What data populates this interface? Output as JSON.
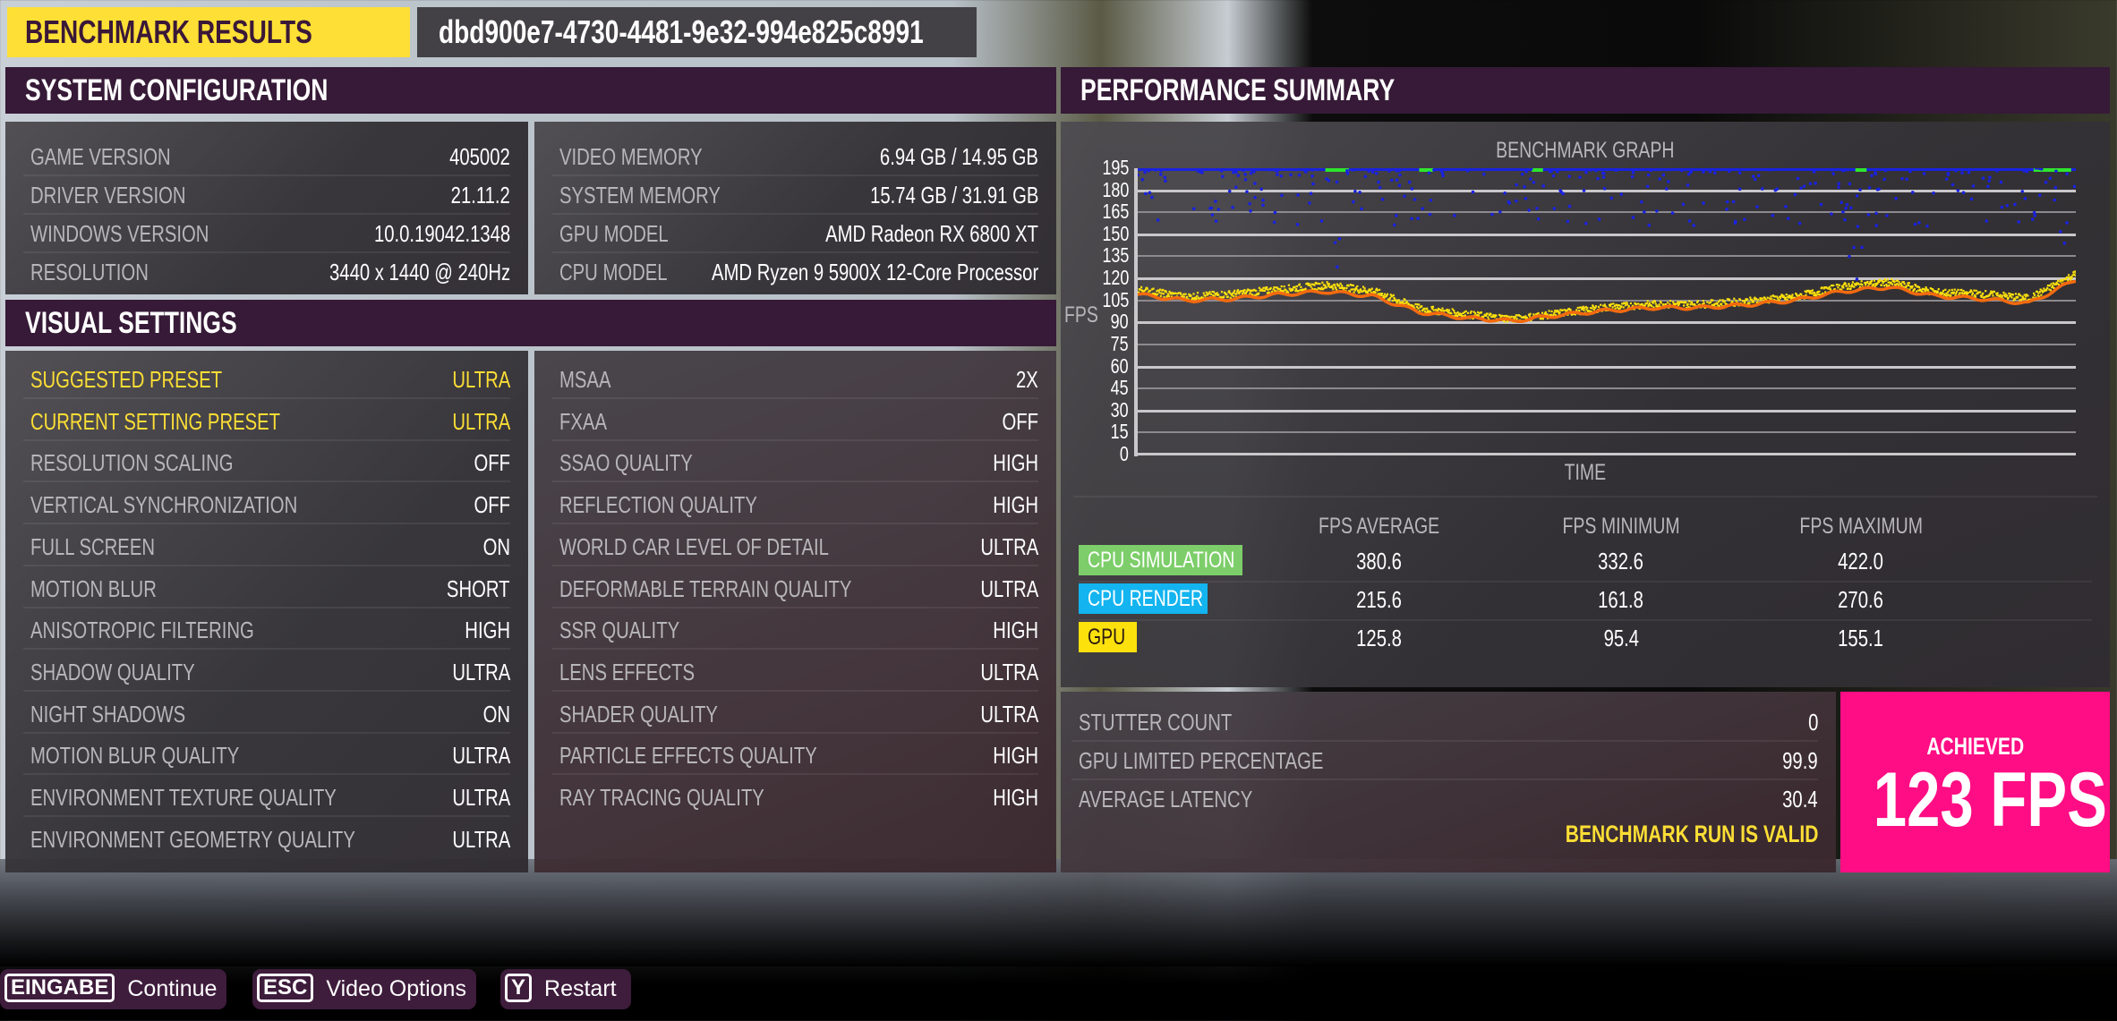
{
  "header": {
    "title": "BENCHMARK RESULTS",
    "run_id": "dbd900e7-4730-4481-9e32-994e825c8991"
  },
  "system_configuration": {
    "title": "SYSTEM CONFIGURATION",
    "left": [
      {
        "label": "GAME VERSION",
        "value": "405002"
      },
      {
        "label": "DRIVER VERSION",
        "value": "21.11.2"
      },
      {
        "label": "WINDOWS VERSION",
        "value": "10.0.19042.1348"
      },
      {
        "label": "RESOLUTION",
        "value": "3440 x 1440 @ 240Hz"
      }
    ],
    "right": [
      {
        "label": "VIDEO MEMORY",
        "value": "6.94 GB / 14.95 GB"
      },
      {
        "label": "SYSTEM MEMORY",
        "value": "15.74 GB / 31.91 GB"
      },
      {
        "label": "GPU MODEL",
        "value": "AMD Radeon RX 6800 XT"
      },
      {
        "label": "CPU MODEL",
        "value": "AMD Ryzen 9 5900X 12-Core Processor"
      }
    ]
  },
  "visual_settings": {
    "title": "VISUAL SETTINGS",
    "left": [
      {
        "label": "SUGGESTED PRESET",
        "value": "ULTRA"
      },
      {
        "label": "CURRENT SETTING PRESET",
        "value": "ULTRA"
      },
      {
        "label": "RESOLUTION SCALING",
        "value": "OFF"
      },
      {
        "label": "VERTICAL SYNCHRONIZATION",
        "value": "OFF"
      },
      {
        "label": "FULL SCREEN",
        "value": "ON"
      },
      {
        "label": "MOTION BLUR",
        "value": "SHORT"
      },
      {
        "label": "ANISOTROPIC FILTERING",
        "value": "HIGH"
      },
      {
        "label": "SHADOW QUALITY",
        "value": "ULTRA"
      },
      {
        "label": "NIGHT SHADOWS",
        "value": "ON"
      },
      {
        "label": "MOTION BLUR QUALITY",
        "value": "ULTRA"
      },
      {
        "label": "ENVIRONMENT TEXTURE QUALITY",
        "value": "ULTRA"
      },
      {
        "label": "ENVIRONMENT GEOMETRY QUALITY",
        "value": "ULTRA"
      }
    ],
    "right": [
      {
        "label": "MSAA",
        "value": "2X"
      },
      {
        "label": "FXAA",
        "value": "OFF"
      },
      {
        "label": "SSAO QUALITY",
        "value": "HIGH"
      },
      {
        "label": "REFLECTION QUALITY",
        "value": "HIGH"
      },
      {
        "label": "WORLD CAR LEVEL OF DETAIL",
        "value": "ULTRA"
      },
      {
        "label": "DEFORMABLE TERRAIN QUALITY",
        "value": "ULTRA"
      },
      {
        "label": "SSR QUALITY",
        "value": "HIGH"
      },
      {
        "label": "LENS EFFECTS",
        "value": "ULTRA"
      },
      {
        "label": "SHADER QUALITY",
        "value": "ULTRA"
      },
      {
        "label": "PARTICLE EFFECTS QUALITY",
        "value": "HIGH"
      },
      {
        "label": "RAY TRACING QUALITY",
        "value": "HIGH"
      }
    ]
  },
  "performance_summary": {
    "title": "PERFORMANCE SUMMARY",
    "graph": {
      "title": "BENCHMARK GRAPH",
      "ylabel": "FPS",
      "xlabel": "TIME"
    },
    "table": {
      "columns": [
        "FPS AVERAGE",
        "FPS MINIMUM",
        "FPS MAXIMUM"
      ],
      "rows": [
        {
          "label": "CPU SIMULATION",
          "color": "#7dce6a",
          "text_color": "#ffffff",
          "avg": "380.6",
          "min": "332.6",
          "max": "422.0"
        },
        {
          "label": "CPU RENDER",
          "color": "#13b4ef",
          "text_color": "#ffffff",
          "avg": "215.6",
          "min": "161.8",
          "max": "270.6"
        },
        {
          "label": "GPU",
          "color": "#fde10d",
          "text_color": "#2a1a10",
          "avg": "125.8",
          "min": "95.4",
          "max": "155.1"
        }
      ]
    },
    "metrics": [
      {
        "label": "STUTTER COUNT",
        "value": "0"
      },
      {
        "label": "GPU LIMITED PERCENTAGE",
        "value": "99.9"
      },
      {
        "label": "AVERAGE LATENCY",
        "value": "30.4"
      }
    ],
    "validity": "BENCHMARK RUN IS VALID",
    "achieved_label": "ACHIEVED",
    "achieved_value": "123 FPS"
  },
  "footer": {
    "buttons": [
      {
        "key": "EINGABE",
        "label": "Continue"
      },
      {
        "key": "ESC",
        "label": "Video Options"
      },
      {
        "key": "Y",
        "label": "Restart"
      }
    ]
  },
  "colors": {
    "accent_yellow": "#fddf35",
    "header_purple": "#361a37",
    "achieved_pink": "#fe0d84",
    "cpu_simulation": "#7dce6a",
    "cpu_render": "#13b4ef",
    "gpu": "#fde10d",
    "series_blue": "#1a22e0",
    "series_orange": "#f26a10",
    "series_green": "#2ee52e"
  },
  "chart_data": {
    "type": "scatter",
    "title": "BENCHMARK GRAPH",
    "xlabel": "TIME",
    "ylabel": "FPS",
    "ylim": [
      0,
      195
    ],
    "yticks": [
      0,
      15,
      30,
      45,
      60,
      75,
      90,
      105,
      120,
      135,
      150,
      165,
      180,
      195
    ],
    "grid": true,
    "x": [
      0,
      5,
      10,
      15,
      20,
      25,
      30,
      35,
      40,
      45,
      50,
      55,
      60,
      65,
      70,
      75,
      80,
      85,
      90,
      95,
      100
    ],
    "series": [
      {
        "name": "CPU Simulation",
        "color": "#2ee52e",
        "values": [
          195,
          195,
          195,
          195,
          195,
          195,
          195,
          195,
          195,
          195,
          195,
          195,
          195,
          195,
          195,
          195,
          195,
          195,
          195,
          195,
          195
        ],
        "note": "clipped at top of graph (avg 380.6)"
      },
      {
        "name": "CPU Render",
        "color": "#1a22e0",
        "values": [
          195,
          195,
          194,
          193,
          192,
          191,
          190,
          189,
          188,
          187,
          186,
          187,
          189,
          191,
          192,
          193,
          192,
          190,
          187,
          186,
          195
        ],
        "note": "mostly clipped at top; scattered dips to ~125 around 20%, ~165 around 40%, ~118 around 76%"
      },
      {
        "name": "GPU",
        "color": "#fde10d",
        "values": [
          113,
          108,
          110,
          113,
          116,
          112,
          100,
          96,
          93,
          97,
          101,
          103,
          103,
          105,
          108,
          115,
          118,
          111,
          110,
          107,
          124
        ]
      },
      {
        "name": "GPU (smoothed)",
        "color": "#f26a10",
        "values": [
          109,
          105,
          106,
          109,
          111,
          108,
          97,
          93,
          91,
          95,
          98,
          100,
          100,
          102,
          105,
          111,
          114,
          108,
          106,
          103,
          119
        ]
      }
    ]
  }
}
